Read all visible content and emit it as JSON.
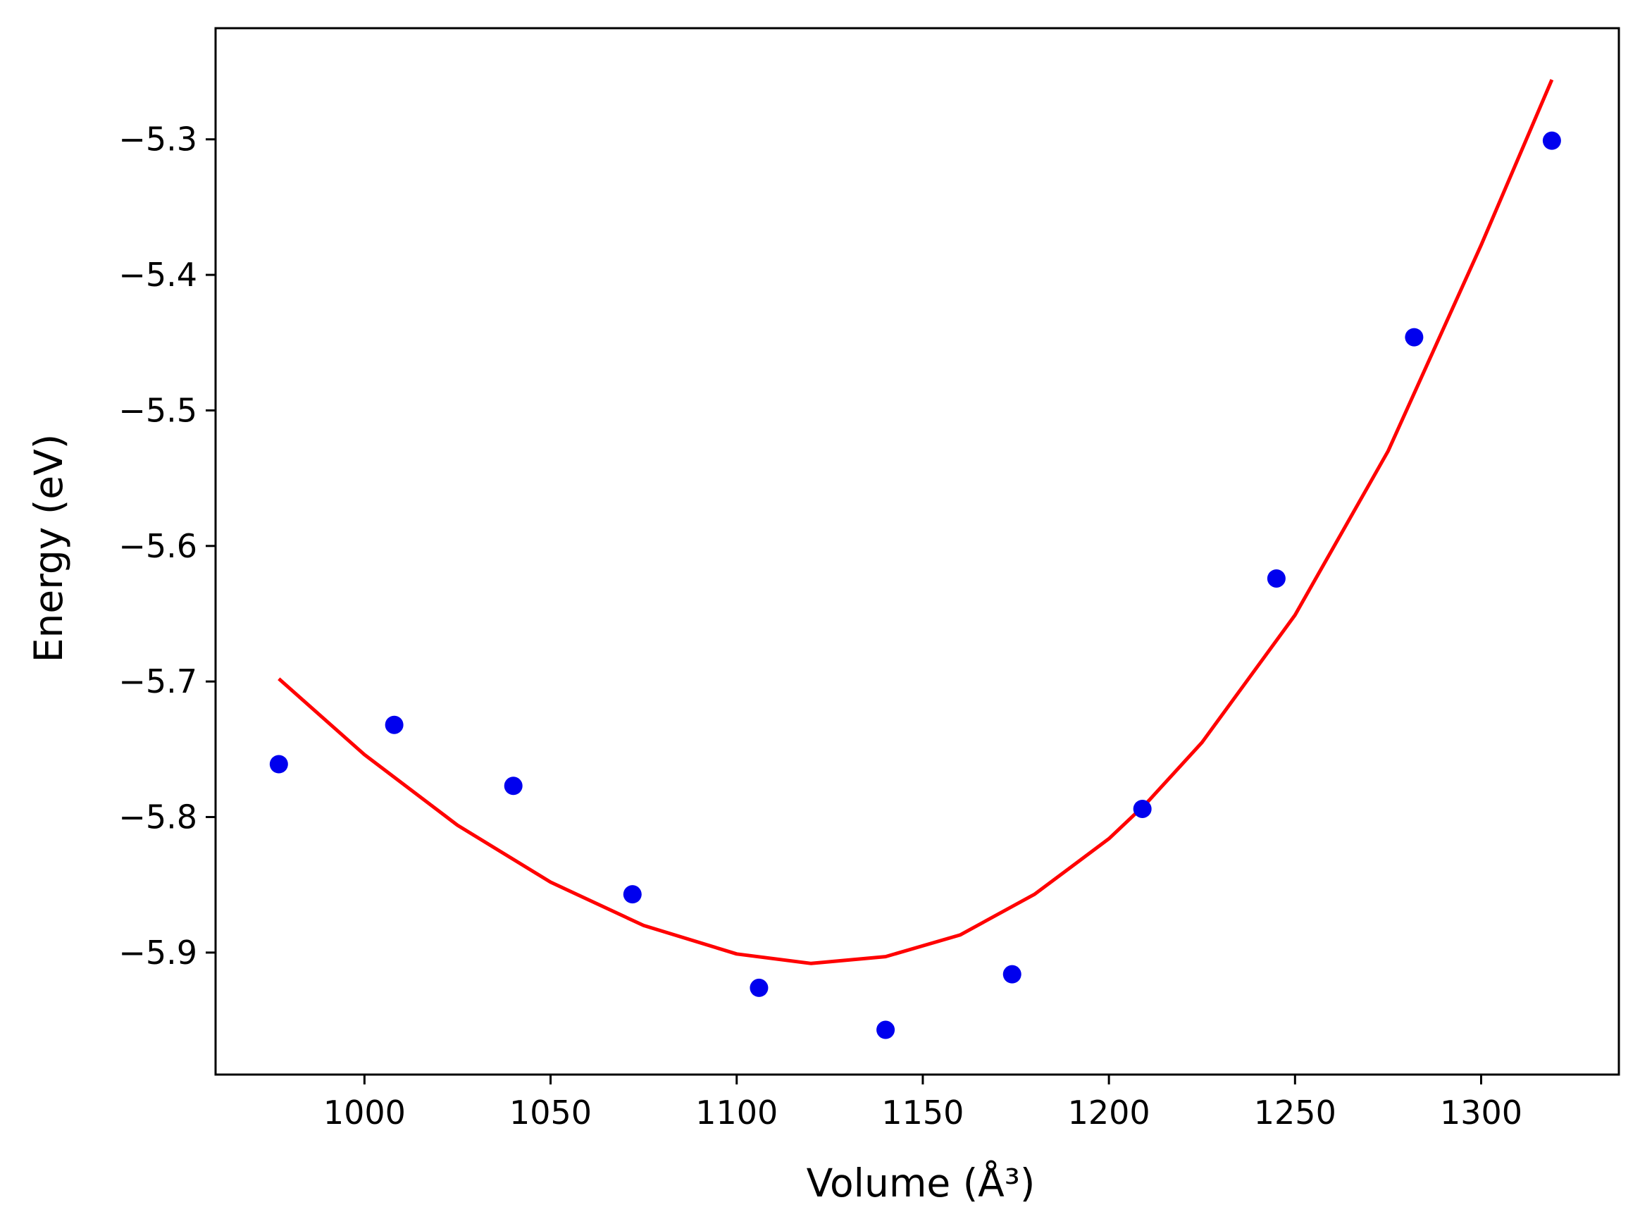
{
  "chart_data": {
    "type": "scatter",
    "title": "",
    "xlabel": "Volume (Å³)",
    "ylabel": "Energy (eV)",
    "xlim": [
      960,
      1337
    ],
    "ylim": [
      -5.99,
      -5.218
    ],
    "xticks": [
      1000,
      1050,
      1100,
      1150,
      1200,
      1250,
      1300
    ],
    "xtick_labels": [
      "1000",
      "1050",
      "1100",
      "1150",
      "1200",
      "1250",
      "1300"
    ],
    "yticks": [
      -5.3,
      -5.4,
      -5.5,
      -5.6,
      -5.7,
      -5.8,
      -5.9
    ],
    "ytick_labels": [
      "−5.3",
      "−5.4",
      "−5.5",
      "−5.6",
      "−5.7",
      "−5.8",
      "−5.9"
    ],
    "grid": false,
    "legend": "none",
    "series": [
      {
        "kind": "points",
        "color": "#0000ee",
        "x": [
          977,
          1008,
          1040,
          1072,
          1106,
          1140,
          1174,
          1209,
          1245,
          1282,
          1319
        ],
        "y": [
          -5.761,
          -5.732,
          -5.777,
          -5.857,
          -5.926,
          -5.957,
          -5.916,
          -5.794,
          -5.624,
          -5.446,
          -5.301
        ]
      },
      {
        "kind": "fit_curve",
        "color": "#ff0000",
        "x": [
          977,
          1000,
          1025,
          1050,
          1075,
          1100,
          1120,
          1140,
          1160,
          1180,
          1200,
          1210,
          1225,
          1250,
          1275,
          1300,
          1319
        ],
        "y": [
          -5.698,
          -5.754,
          -5.806,
          -5.848,
          -5.88,
          -5.901,
          -5.908,
          -5.903,
          -5.887,
          -5.857,
          -5.816,
          -5.79,
          -5.745,
          -5.651,
          -5.53,
          -5.378,
          -5.256
        ]
      }
    ]
  }
}
